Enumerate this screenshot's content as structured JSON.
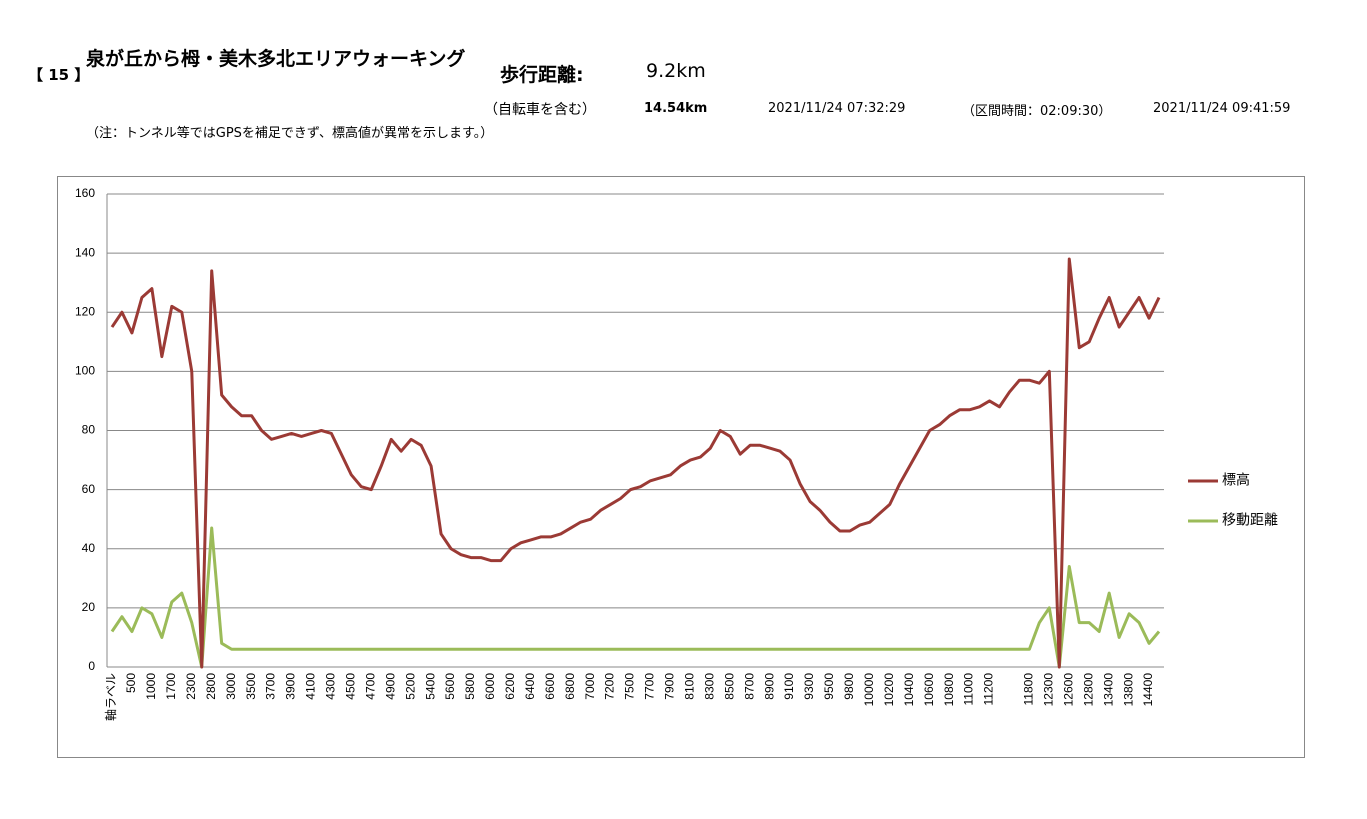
{
  "header": {
    "number": "【 15 】",
    "title": "泉が丘から栂・美木多北エリアウォーキング",
    "walk_label": "歩行距離:",
    "walk_distance": "9.2km",
    "bike_label": "（自転車を含む）",
    "total_distance": "14.54km",
    "start_time": "2021/11/24 07:32:29",
    "interval": "（区間時間：02:09:30）",
    "end_time": "2021/11/24 09:41:59",
    "note": "（注：トンネル等ではGPSを補足できず、標高値が異常を示します。）"
  },
  "chart_data": {
    "type": "line",
    "categories": [
      "軸ラベル",
      null,
      "500",
      null,
      "1000",
      null,
      "1700",
      null,
      "2300",
      null,
      "2800",
      null,
      "3000",
      null,
      "3500",
      null,
      "3700",
      null,
      "3900",
      null,
      "4100",
      null,
      "4300",
      null,
      "4500",
      null,
      "4700",
      null,
      "4900",
      null,
      "5200",
      null,
      "5400",
      null,
      "5600",
      null,
      "5800",
      null,
      "6000",
      null,
      "6200",
      null,
      "6400",
      null,
      "6600",
      null,
      "6800",
      null,
      "7000",
      null,
      "7200",
      null,
      "7500",
      null,
      "7700",
      null,
      "7900",
      null,
      "8100",
      null,
      "8300",
      null,
      "8500",
      null,
      "8700",
      null,
      "8900",
      null,
      "9100",
      null,
      "9300",
      null,
      "9500",
      null,
      "9800",
      null,
      "10000",
      null,
      "10200",
      null,
      "10400",
      null,
      "10600",
      null,
      "10800",
      null,
      "11000",
      null,
      "11200",
      null,
      null,
      null,
      "11800",
      null,
      "12300",
      null,
      "12600",
      null,
      "12800",
      null,
      "13400",
      null,
      "13800",
      null,
      "14400",
      null
    ],
    "series": [
      {
        "name": "標高",
        "color": "#9b3a35",
        "values": [
          115,
          120,
          113,
          125,
          128,
          105,
          122,
          120,
          100,
          0,
          134,
          92,
          88,
          85,
          85,
          80,
          77,
          78,
          79,
          78,
          79,
          80,
          79,
          72,
          65,
          61,
          60,
          68,
          77,
          73,
          77,
          75,
          68,
          45,
          40,
          38,
          37,
          37,
          36,
          36,
          40,
          42,
          43,
          44,
          44,
          45,
          47,
          49,
          50,
          53,
          55,
          57,
          60,
          61,
          63,
          64,
          65,
          68,
          70,
          71,
          74,
          80,
          78,
          72,
          75,
          75,
          74,
          73,
          70,
          62,
          56,
          53,
          49,
          46,
          46,
          48,
          49,
          52,
          55,
          62,
          68,
          74,
          80,
          82,
          85,
          87,
          87,
          88,
          90,
          88,
          93,
          97,
          97,
          96,
          100,
          0,
          138,
          108,
          110,
          118,
          125,
          115,
          120,
          125,
          118,
          125
        ]
      },
      {
        "name": "移動距離",
        "color": "#9bbb59",
        "values": [
          12,
          17,
          12,
          20,
          18,
          10,
          22,
          25,
          15,
          0,
          47,
          8,
          6,
          6,
          6,
          6,
          6,
          6,
          6,
          6,
          6,
          6,
          6,
          6,
          6,
          6,
          6,
          6,
          6,
          6,
          6,
          6,
          6,
          6,
          6,
          6,
          6,
          6,
          6,
          6,
          6,
          6,
          6,
          6,
          6,
          6,
          6,
          6,
          6,
          6,
          6,
          6,
          6,
          6,
          6,
          6,
          6,
          6,
          6,
          6,
          6,
          6,
          6,
          6,
          6,
          6,
          6,
          6,
          6,
          6,
          6,
          6,
          6,
          6,
          6,
          6,
          6,
          6,
          6,
          6,
          6,
          6,
          6,
          6,
          6,
          6,
          6,
          6,
          6,
          6,
          6,
          6,
          6,
          15,
          20,
          0,
          34,
          15,
          15,
          12,
          25,
          10,
          18,
          15,
          8,
          12
        ]
      }
    ],
    "ylim": [
      0,
      160
    ],
    "yticks": [
      0,
      20,
      40,
      60,
      80,
      100,
      120,
      140,
      160
    ],
    "grid": true,
    "legend": "right"
  }
}
